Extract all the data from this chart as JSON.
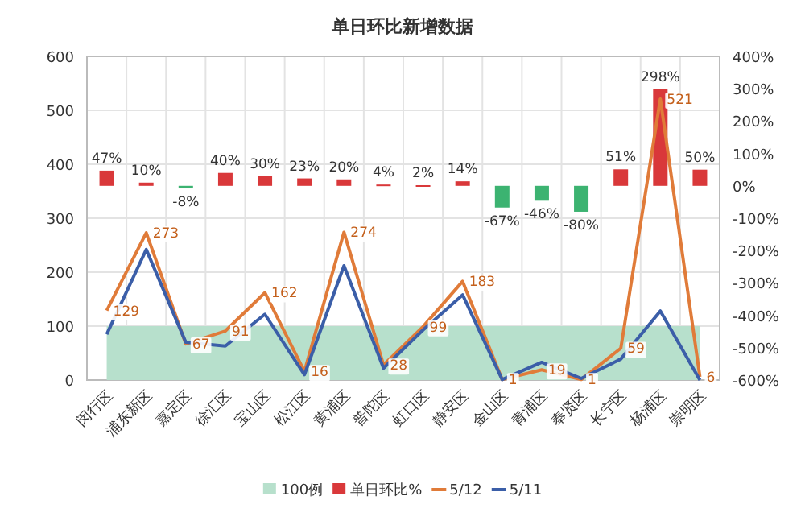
{
  "chart_data": {
    "type": "line",
    "title": "单日环比新增数据",
    "categories": [
      "闵行区",
      "浦东新区",
      "嘉定区",
      "徐汇区",
      "宝山区",
      "松江区",
      "黄浦区",
      "普陀区",
      "虹口区",
      "静安区",
      "金山区",
      "青浦区",
      "奉贤区",
      "长宁区",
      "杨浦区",
      "崇明区"
    ],
    "series": [
      {
        "name": "100例",
        "type": "area",
        "color": "#b7e0cc",
        "values": [
          100,
          100,
          100,
          100,
          100,
          100,
          100,
          100,
          100,
          100,
          100,
          100,
          100,
          100,
          100,
          100
        ]
      },
      {
        "name": "单日环比%",
        "type": "bar",
        "axis": "y2",
        "colors": [
          "#d9383a",
          "#d9383a",
          "#3cb371",
          "#d9383a",
          "#d9383a",
          "#d9383a",
          "#d9383a",
          "#d9383a",
          "#d9383a",
          "#d9383a",
          "#3cb371",
          "#3cb371",
          "#3cb371",
          "#d9383a",
          "#d9383a",
          "#d9383a"
        ],
        "color": "#d9383a",
        "values": [
          47,
          10,
          -8,
          40,
          30,
          23,
          20,
          4,
          2,
          14,
          -67,
          -46,
          -80,
          51,
          298,
          50
        ],
        "value_labels": [
          "47%",
          "10%",
          "-8%",
          "40%",
          "30%",
          "23%",
          "20%",
          "4%",
          "2%",
          "14%",
          "-67%",
          "-46%",
          "-80%",
          "51%",
          "298%",
          "50%"
        ]
      },
      {
        "name": "5/12",
        "color": "#e07b39",
        "values": [
          129,
          273,
          67,
          91,
          162,
          16,
          274,
          28,
          99,
          183,
          1,
          19,
          1,
          59,
          521,
          6
        ],
        "value_labels": [
          "129",
          "273",
          "67",
          "91",
          "162",
          "16",
          "274",
          "28",
          "99",
          "183",
          "1",
          "19",
          "1",
          "59",
          "521",
          "6"
        ]
      },
      {
        "name": "5/11",
        "color": "#3b5ea8",
        "values": [
          85,
          242,
          70,
          63,
          122,
          10,
          212,
          22,
          93,
          158,
          1,
          33,
          3,
          39,
          128,
          0
        ]
      }
    ],
    "ylim": [
      0,
      600
    ],
    "yticks": [
      0,
      100,
      200,
      300,
      400,
      500,
      600
    ],
    "y2lim": [
      -600,
      400
    ],
    "y2ticks": [
      {
        "value": -600,
        "label": "-600%"
      },
      {
        "value": -500,
        "label": "-500%"
      },
      {
        "value": -400,
        "label": "-400%"
      },
      {
        "value": -300,
        "label": "-300%"
      },
      {
        "value": -200,
        "label": "-200%"
      },
      {
        "value": -100,
        "label": "-100%"
      },
      {
        "value": 0,
        "label": "0%"
      },
      {
        "value": 100,
        "label": "100%"
      },
      {
        "value": 200,
        "label": "200%"
      },
      {
        "value": 300,
        "label": "300%"
      },
      {
        "value": 400,
        "label": "400%"
      }
    ],
    "grid": true,
    "legend": "bottom"
  }
}
